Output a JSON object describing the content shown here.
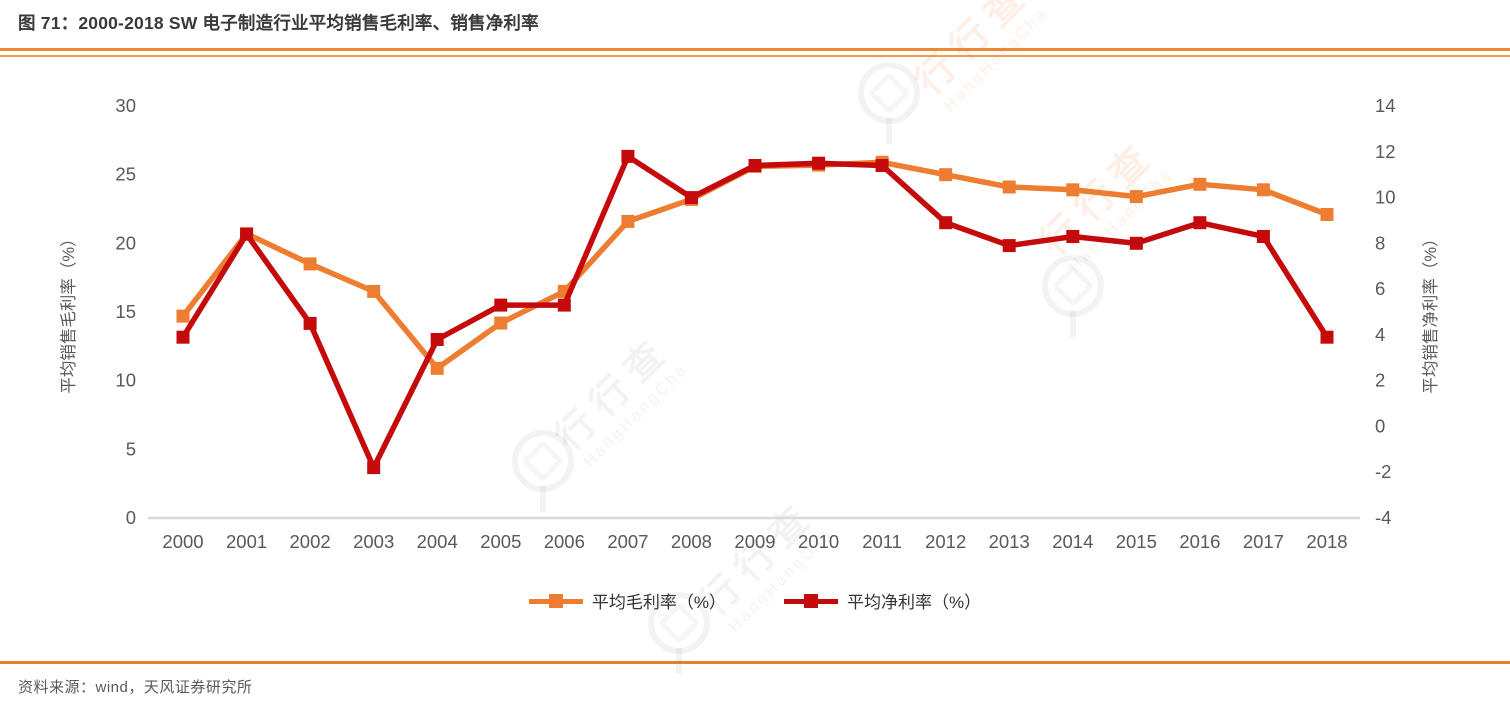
{
  "page": {
    "title": "图 71：2000-2018 SW 电子制造行业平均销售毛利率、销售净利率",
    "source": "资料来源：wind，天风证券研究所",
    "watermark": {
      "cn": "行行查",
      "en": "HangHangCha"
    }
  },
  "colors": {
    "series_orange": "#ED7D31",
    "series_red": "#C50A0C",
    "separator_orange": "#ED8733",
    "axis_line_gray": "#D9D9D9",
    "tick_text_gray": "#595959"
  },
  "chart_data": {
    "type": "line",
    "title": "2000-2018 SW 电子制造行业平均销售毛利率、销售净利率",
    "categories": [
      "2000",
      "2001",
      "2002",
      "2003",
      "2004",
      "2005",
      "2006",
      "2007",
      "2008",
      "2009",
      "2010",
      "2011",
      "2012",
      "2013",
      "2014",
      "2015",
      "2016",
      "2017",
      "2018"
    ],
    "series": [
      {
        "name": "平均毛利率（%）",
        "axis": "left",
        "color": "#ED7D31",
        "marker": "square",
        "values": [
          14.7,
          20.7,
          18.5,
          16.5,
          10.9,
          14.2,
          16.5,
          21.6,
          23.2,
          25.6,
          25.7,
          25.9,
          25.0,
          24.1,
          23.9,
          23.4,
          24.3,
          23.9,
          22.1
        ]
      },
      {
        "name": "平均净利率（%）",
        "axis": "right",
        "color": "#C50A0C",
        "marker": "square",
        "values": [
          3.9,
          8.4,
          4.5,
          -1.8,
          3.8,
          5.3,
          5.3,
          11.8,
          10.0,
          11.4,
          11.5,
          11.4,
          8.9,
          7.9,
          8.3,
          8.0,
          8.9,
          8.3,
          3.9
        ]
      }
    ],
    "left_axis": {
      "title": "平均销售毛利率（%）",
      "min": 0,
      "max": 30,
      "step": 5
    },
    "right_axis": {
      "title": "平均销售净利率（%）",
      "min": -4,
      "max": 14,
      "step": 2
    },
    "grid": false,
    "legend_position": "bottom"
  }
}
